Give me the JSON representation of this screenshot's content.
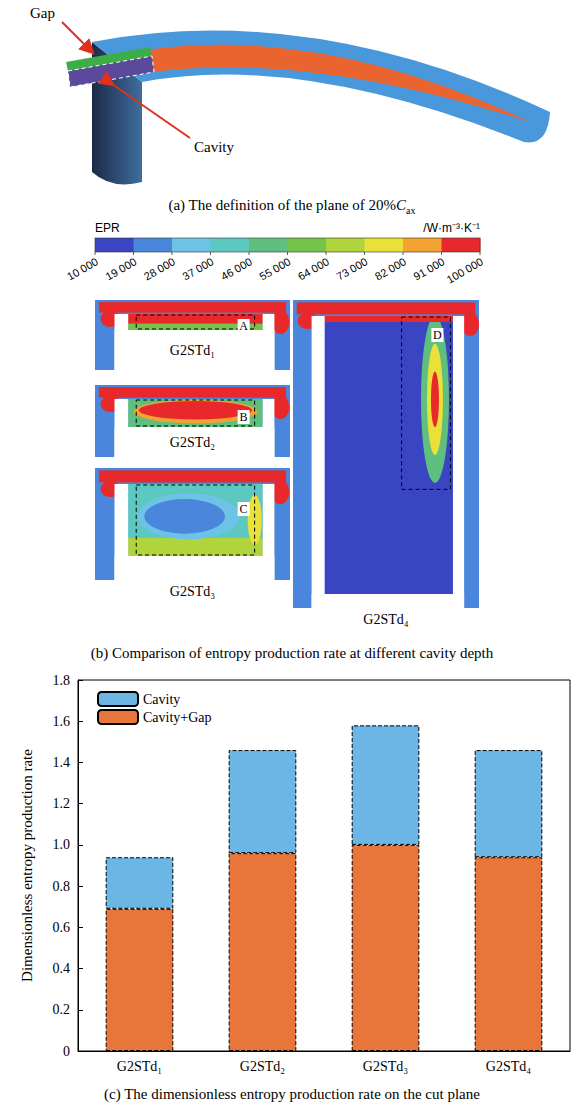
{
  "panel_a": {
    "caption": {
      "prefix": "(a) The definition of the plane of 20%",
      "symbol": "C",
      "subscript": "ax"
    },
    "labels": {
      "gap": "Gap",
      "cavity": "Cavity"
    }
  },
  "panel_b": {
    "caption": "(b) Comparison of entropy production rate at different cavity depth",
    "colorbar": {
      "title": "EPR",
      "unit": "/W·m⁻³·K⁻¹",
      "range": [
        10000,
        100000
      ],
      "ticks": [
        {
          "value": 10000,
          "label": "10 000"
        },
        {
          "value": 19000,
          "label": "19 000"
        },
        {
          "value": 28000,
          "label": "28 000"
        },
        {
          "value": 37000,
          "label": "37 000"
        },
        {
          "value": 46000,
          "label": "46 000"
        },
        {
          "value": 55000,
          "label": "55 000"
        },
        {
          "value": 64000,
          "label": "64 000"
        },
        {
          "value": 73000,
          "label": "73 000"
        },
        {
          "value": 82000,
          "label": "82 000"
        },
        {
          "value": 91000,
          "label": "91 000"
        },
        {
          "value": 100000,
          "label": "100 000"
        }
      ],
      "colors": [
        "#3a45c2",
        "#4a86dc",
        "#6cc3e6",
        "#5cc8c0",
        "#5fbf7f",
        "#74c44c",
        "#b0d53c",
        "#e9e03a",
        "#f4a231",
        "#e8282a"
      ]
    },
    "cases": [
      {
        "label": "G2STd₁",
        "region": "A"
      },
      {
        "label": "G2STd₂",
        "region": "B"
      },
      {
        "label": "G2STd₃",
        "region": "C"
      },
      {
        "label": "G2STd₄",
        "region": "D"
      }
    ]
  },
  "chart_data": {
    "type": "bar",
    "stacked": true,
    "caption": "(c) The dimensionless entropy production rate on the cut plane",
    "ylabel": "Dimensionless entropy production rate",
    "categories": [
      "G2STd₁",
      "G2STd₂",
      "G2STd₃",
      "G2STd₄"
    ],
    "series": [
      {
        "name": "Cavity+Gap",
        "color": "#e8763b",
        "values": [
          0.69,
          0.96,
          1.0,
          0.94
        ]
      },
      {
        "name": "Cavity",
        "color": "#6cb6e6",
        "values": [
          0.25,
          0.5,
          0.58,
          0.52
        ]
      }
    ],
    "ylim": [
      0,
      1.8
    ],
    "yticks": [
      0,
      0.2,
      0.4,
      0.6,
      0.8,
      {
        "value": 1,
        "label": "1.0"
      },
      1.2,
      1.4,
      1.6,
      1.8
    ],
    "legend": "upper left",
    "grid": false
  }
}
